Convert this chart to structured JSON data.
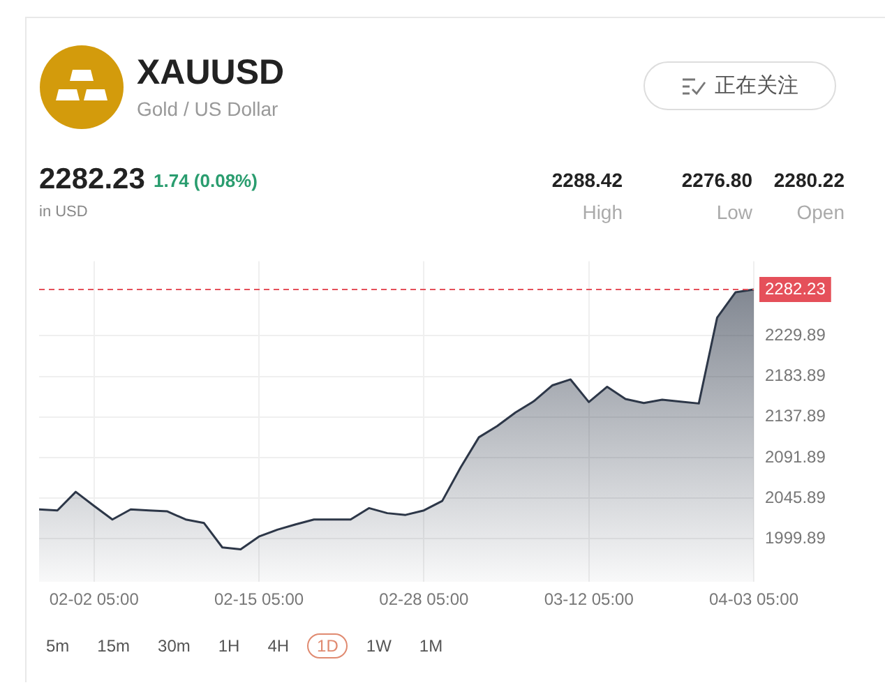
{
  "chart_data": {
    "type": "area",
    "title": "XAUUSD",
    "subtitle": "Gold / US Dollar",
    "categories": [
      null,
      null,
      null,
      "02-02 05:00",
      null,
      null,
      null,
      null,
      null,
      null,
      null,
      null,
      "02-15 05:00",
      null,
      null,
      null,
      null,
      null,
      null,
      null,
      null,
      "02-28 05:00",
      null,
      null,
      null,
      null,
      null,
      null,
      null,
      null,
      "03-12 05:00",
      null,
      null,
      null,
      null,
      null,
      null,
      null,
      null,
      "04-03 05:00"
    ],
    "series": [
      {
        "color": "#2d3748",
        "values": [
          2033.2,
          2032.1,
          2053.1,
          2037.2,
          2021.8,
          2033.2,
          2032.1,
          2031.0,
          2021.8,
          2017.8,
          1990.2,
          1988.1,
          2002.5,
          2010.2,
          2016.3,
          2021.8,
          2021.8,
          2021.8,
          2034.7,
          2029.0,
          2027.0,
          2032.1,
          2042.8,
          2080.7,
          2114.9,
          2127.6,
          2143.0,
          2155.8,
          2173.6,
          2180.4,
          2154.8,
          2172.1,
          2158.3,
          2153.7,
          2157.4,
          2155.2,
          2153.2,
          2250.3,
          2279.0,
          2282.2
        ]
      }
    ],
    "ylim": [
      1951.3,
      2314.3
    ],
    "yticks": [
      1999.89,
      2045.89,
      2091.89,
      2137.89,
      2183.89,
      2229.89
    ],
    "grid": true,
    "legend": false,
    "marker": "none",
    "ref_lines": [
      {
        "axis": "y",
        "value": 2282.23,
        "label": "2282.23",
        "color": "#e5505a",
        "line_style": "dashed"
      }
    ],
    "annotations": [
      "正在关注",
      "2282.23",
      "1.74 (0.08%)",
      "in USD",
      "2288.42",
      "High",
      "2276.80",
      "Low",
      "2280.22",
      "Open",
      "5m",
      "15m",
      "30m",
      "1H",
      "4H",
      "1D",
      "1W",
      "1M"
    ]
  }
}
